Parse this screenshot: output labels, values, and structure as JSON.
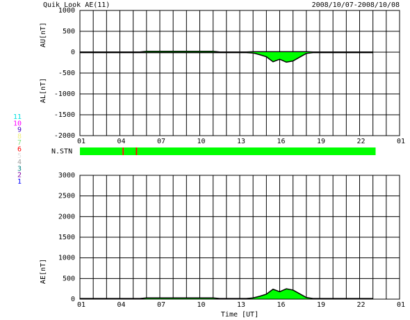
{
  "chart_data": [
    {
      "type": "area",
      "title": "Quik Look AE(11)",
      "subtitle": "2008/10/07-2008/10/08",
      "ylabels": [
        "AU[nT]",
        "AL[nT]"
      ],
      "x": [
        0,
        0.5,
        1,
        1.5,
        2,
        2.5,
        3,
        3.5,
        4,
        4.5,
        5,
        5.5,
        6,
        6.5,
        7,
        7.5,
        8,
        8.5,
        9,
        9.5,
        10,
        10.5,
        11,
        11.5,
        12,
        12.5,
        13,
        13.5,
        14,
        14.5,
        15,
        15.5,
        16,
        16.5,
        17,
        17.5,
        18,
        18.5,
        19,
        19.5,
        20,
        20.5,
        21,
        21.5,
        22
      ],
      "series": [
        {
          "name": "AU",
          "color": "#00ff00",
          "values": [
            5,
            5,
            5,
            5,
            5,
            5,
            5,
            5,
            5,
            5,
            20,
            20,
            20,
            20,
            20,
            20,
            20,
            20,
            20,
            20,
            20,
            5,
            5,
            5,
            5,
            5,
            10,
            10,
            10,
            10,
            10,
            10,
            10,
            10,
            10,
            5,
            5,
            5,
            5,
            5,
            5,
            5,
            5,
            5,
            5
          ]
        },
        {
          "name": "AL",
          "color": "#00ff00",
          "values": [
            -10,
            -10,
            -10,
            -10,
            -10,
            -10,
            -10,
            -10,
            -10,
            -10,
            -10,
            -10,
            -10,
            -10,
            -10,
            -10,
            -10,
            -10,
            -10,
            -10,
            -10,
            -10,
            -10,
            -10,
            -10,
            -10,
            -20,
            -60,
            -110,
            -230,
            -170,
            -240,
            -210,
            -120,
            -30,
            -10,
            -10,
            -10,
            -10,
            -10,
            -10,
            -10,
            -10,
            -10,
            -10
          ]
        }
      ],
      "xlim": [
        0,
        24
      ],
      "xticks": [
        {
          "value": 0,
          "label": "01"
        },
        {
          "value": 3,
          "label": "04"
        },
        {
          "value": 6,
          "label": "07"
        },
        {
          "value": 9,
          "label": "10"
        },
        {
          "value": 12,
          "label": "13"
        },
        {
          "value": 15,
          "label": "16"
        },
        {
          "value": 18,
          "label": "19"
        },
        {
          "value": 21,
          "label": "22"
        },
        {
          "value": 24,
          "label": "01"
        }
      ],
      "xgrid": [
        1,
        2,
        3,
        4,
        5,
        6,
        7,
        8,
        9,
        10,
        11,
        12,
        13,
        14,
        15,
        16,
        17,
        18,
        19,
        20,
        21,
        22,
        23
      ],
      "ylim": [
        -2000,
        1000
      ],
      "yticks": [
        -2000,
        -1500,
        -1000,
        -500,
        0,
        500,
        1000
      ],
      "grid": true
    },
    {
      "type": "strip",
      "label": "N.STN",
      "xlim": [
        0,
        24
      ],
      "segments": [
        {
          "start": 0,
          "end": 3.2,
          "color": "#00ff00"
        },
        {
          "start": 3.2,
          "end": 3.3,
          "color": "#ff0000"
        },
        {
          "start": 3.3,
          "end": 4.2,
          "color": "#00ff00"
        },
        {
          "start": 4.2,
          "end": 4.3,
          "color": "#ff0000"
        },
        {
          "start": 4.3,
          "end": 22.2,
          "color": "#00ff00"
        }
      ],
      "legend": [
        {
          "name": "11",
          "color": "#00e0e0"
        },
        {
          "name": "10",
          "color": "#ff00ff"
        },
        {
          "name": "9",
          "color": "#4000c0"
        },
        {
          "name": "8",
          "color": "#f0f080"
        },
        {
          "name": "7",
          "color": "#80e080"
        },
        {
          "name": "6",
          "color": "#ff0000"
        },
        {
          "name": "5",
          "color": "#e0e0e0"
        },
        {
          "name": "4",
          "color": "#a0a0a0"
        },
        {
          "name": "3",
          "color": "#008080"
        },
        {
          "name": "2",
          "color": "#8000a0"
        },
        {
          "name": "1",
          "color": "#0000ff"
        }
      ]
    },
    {
      "type": "area",
      "ylabels": [
        "AE[nT]"
      ],
      "xlabel": "Time [UT]",
      "x": [
        0,
        0.5,
        1,
        1.5,
        2,
        2.5,
        3,
        3.5,
        4,
        4.5,
        5,
        5.5,
        6,
        6.5,
        7,
        7.5,
        8,
        8.5,
        9,
        9.5,
        10,
        10.5,
        11,
        11.5,
        12,
        12.5,
        13,
        13.5,
        14,
        14.5,
        15,
        15.5,
        16,
        16.5,
        17,
        17.5,
        18,
        18.5,
        19,
        19.5,
        20,
        20.5,
        21,
        21.5,
        22
      ],
      "series": [
        {
          "name": "AE",
          "color": "#00ff00",
          "values": [
            15,
            15,
            15,
            15,
            15,
            15,
            15,
            15,
            15,
            15,
            30,
            30,
            30,
            30,
            30,
            30,
            30,
            30,
            30,
            30,
            30,
            15,
            15,
            15,
            15,
            15,
            30,
            70,
            120,
            240,
            180,
            250,
            220,
            130,
            40,
            15,
            15,
            15,
            15,
            15,
            15,
            15,
            15,
            15,
            15
          ]
        }
      ],
      "xlim": [
        0,
        24
      ],
      "xticks": [
        {
          "value": 0,
          "label": "01"
        },
        {
          "value": 3,
          "label": "04"
        },
        {
          "value": 6,
          "label": "07"
        },
        {
          "value": 9,
          "label": "10"
        },
        {
          "value": 12,
          "label": "13"
        },
        {
          "value": 15,
          "label": "16"
        },
        {
          "value": 18,
          "label": "19"
        },
        {
          "value": 21,
          "label": "22"
        },
        {
          "value": 24,
          "label": "01"
        }
      ],
      "xgrid": [
        1,
        2,
        3,
        4,
        5,
        6,
        7,
        8,
        9,
        10,
        11,
        12,
        13,
        14,
        15,
        16,
        17,
        18,
        19,
        20,
        21,
        22,
        23
      ],
      "ylim": [
        0,
        3000
      ],
      "yticks": [
        0,
        500,
        1000,
        1500,
        2000,
        2500,
        3000
      ],
      "grid": true
    }
  ]
}
